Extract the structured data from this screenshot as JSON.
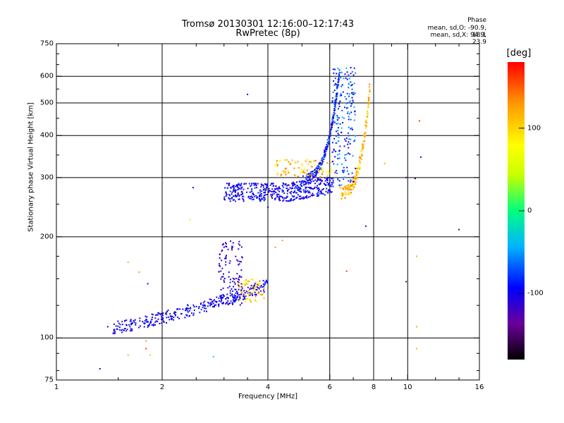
{
  "chart_data": {
    "type": "scatter",
    "title": "Tromsø 20130301 12:16:00–12:17:43",
    "subtitle": "RwPretec (8p)",
    "xlabel": "Frequency [MHz]",
    "ylabel": "Stationary phase Virtual Height [km]",
    "x_scale": "log",
    "y_scale": "log",
    "xlim": [
      1,
      16
    ],
    "ylim": [
      75,
      750
    ],
    "x_ticks": [
      1,
      2,
      4,
      6,
      8,
      10,
      16
    ],
    "x_tick_labels": [
      "1",
      "2",
      "4",
      "6",
      "8",
      "10",
      "16"
    ],
    "y_ticks": [
      75,
      100,
      200,
      300,
      400,
      500,
      600,
      750
    ],
    "y_tick_labels": [
      "75",
      "100",
      "200",
      "300",
      "400",
      "500",
      "600",
      "750"
    ],
    "x_gridlines": [
      2,
      4,
      6,
      8,
      10
    ],
    "y_gridlines": [
      100,
      200,
      300,
      400,
      500,
      600
    ],
    "grid": true,
    "colorbar": {
      "label": "[deg]",
      "min": -180,
      "max": 180,
      "ticks": [
        100,
        0,
        -100
      ],
      "tick_labels": [
        "100",
        "0",
        "-100"
      ],
      "colors": [
        "#000000",
        "#6a0099",
        "#0000ff",
        "#00b4ff",
        "#00ff7f",
        "#c8ff00",
        "#ffff00",
        "#ff9900",
        "#ff0000"
      ]
    },
    "phase_info": {
      "header": "Phase",
      "o_line": "mean, sd,O: -90.9, 18.1",
      "x_line": "mean, sd,X:  94.9, 23.9"
    },
    "clusters": [
      {
        "x": [
          1.45,
          4.0
        ],
        "y": [
          103,
          152
        ],
        "phase": [
          -120,
          -80
        ],
        "n": 340,
        "shape": "e_ramp"
      },
      {
        "x": [
          2.9,
          3.4
        ],
        "y": [
          125,
          195
        ],
        "phase": [
          -130,
          -90
        ],
        "n": 110,
        "shape": "e_cusp"
      },
      {
        "x": [
          3.3,
          3.9
        ],
        "y": [
          128,
          150
        ],
        "phase": [
          70,
          140
        ],
        "n": 60,
        "shape": "e_x"
      },
      {
        "x": [
          3.0,
          6.1
        ],
        "y": [
          255,
          305
        ],
        "phase": [
          -120,
          -75
        ],
        "n": 480,
        "shape": "f1"
      },
      {
        "x": [
          4.2,
          6.2
        ],
        "y": [
          300,
          340
        ],
        "phase": [
          70,
          150
        ],
        "n": 90,
        "shape": "f1_x"
      },
      {
        "x": [
          5.0,
          6.4
        ],
        "y": [
          300,
          620
        ],
        "phase": [
          -120,
          -60
        ],
        "n": 200,
        "shape": "f2_o"
      },
      {
        "x": [
          6.1,
          7.1
        ],
        "y": [
          280,
          640
        ],
        "phase": [
          -110,
          -40
        ],
        "n": 200,
        "shape": "f2_spike"
      },
      {
        "x": [
          6.4,
          7.8
        ],
        "y": [
          270,
          560
        ],
        "phase": [
          70,
          150
        ],
        "n": 170,
        "shape": "f2_x"
      }
    ],
    "outliers": [
      {
        "x": 1.33,
        "y": 81,
        "phase": -100
      },
      {
        "x": 1.4,
        "y": 108,
        "phase": -105
      },
      {
        "x": 1.6,
        "y": 89,
        "phase": 120
      },
      {
        "x": 1.6,
        "y": 168,
        "phase": 120
      },
      {
        "x": 1.72,
        "y": 157,
        "phase": 130
      },
      {
        "x": 1.8,
        "y": 98,
        "phase": 130
      },
      {
        "x": 1.8,
        "y": 93,
        "phase": 160
      },
      {
        "x": 1.85,
        "y": 89,
        "phase": 40
      },
      {
        "x": 1.82,
        "y": 145,
        "phase": -90
      },
      {
        "x": 2.4,
        "y": 225,
        "phase": 60
      },
      {
        "x": 2.45,
        "y": 280,
        "phase": -100
      },
      {
        "x": 2.8,
        "y": 88,
        "phase": -10
      },
      {
        "x": 3.5,
        "y": 530,
        "phase": -110
      },
      {
        "x": 4.0,
        "y": 245,
        "phase": -100
      },
      {
        "x": 4.2,
        "y": 186,
        "phase": 130
      },
      {
        "x": 4.4,
        "y": 195,
        "phase": 130
      },
      {
        "x": 6.7,
        "y": 158,
        "phase": 160
      },
      {
        "x": 7.6,
        "y": 215,
        "phase": -120
      },
      {
        "x": 8.6,
        "y": 330,
        "phase": 120
      },
      {
        "x": 9.9,
        "y": 300,
        "phase": -140
      },
      {
        "x": 9.9,
        "y": 147,
        "phase": -140
      },
      {
        "x": 10.6,
        "y": 93,
        "phase": 120
      },
      {
        "x": 10.6,
        "y": 108,
        "phase": 120
      },
      {
        "x": 10.6,
        "y": 175,
        "phase": 120
      },
      {
        "x": 10.5,
        "y": 298,
        "phase": -160
      },
      {
        "x": 10.8,
        "y": 442,
        "phase": 160
      },
      {
        "x": 10.9,
        "y": 345,
        "phase": -100
      },
      {
        "x": 14.0,
        "y": 210,
        "phase": -120
      }
    ]
  }
}
